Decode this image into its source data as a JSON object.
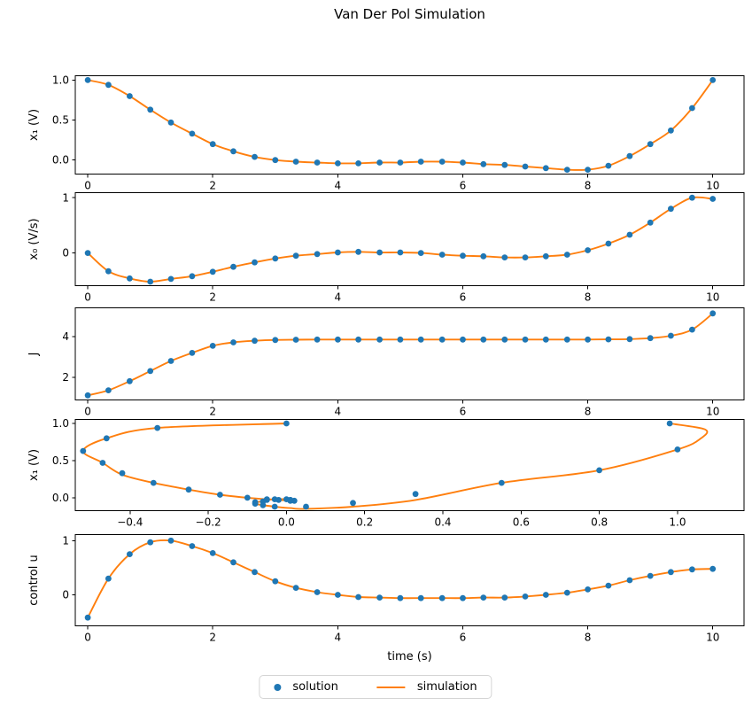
{
  "title": "Van Der Pol Simulation",
  "xlabel": "time (s)",
  "legend": {
    "solution_label": "solution",
    "simulation_label": "simulation"
  },
  "colors": {
    "solution": "#1f77b4",
    "simulation": "#ff7f0e",
    "axis": "#000000"
  },
  "time": [
    0,
    0.33,
    0.67,
    1,
    1.33,
    1.67,
    2,
    2.33,
    2.67,
    3,
    3.33,
    3.67,
    4,
    4.33,
    4.67,
    5,
    5.33,
    5.67,
    6,
    6.33,
    6.67,
    7,
    7.33,
    7.67,
    8,
    8.33,
    8.67,
    9,
    9.33,
    9.67,
    10
  ],
  "chart_data": [
    {
      "type": "scatter+line",
      "name": "x1-vs-time",
      "ylabel": "x₁ (V)",
      "y": [
        1,
        0.94,
        0.8,
        0.63,
        0.47,
        0.33,
        0.2,
        0.11,
        0.04,
        0,
        -0.02,
        -0.03,
        -0.04,
        -0.04,
        -0.03,
        -0.03,
        -0.02,
        -0.02,
        -0.03,
        -0.05,
        -0.06,
        -0.08,
        -0.1,
        -0.12,
        -0.12,
        -0.07,
        0.05,
        0.2,
        0.37,
        0.65,
        1
      ],
      "xlim": [
        -0.2,
        10.5
      ],
      "ylim": [
        -0.18,
        1.06
      ],
      "xticks": {
        "values": [
          0,
          2,
          4,
          6,
          8,
          10
        ],
        "labels": [
          "0",
          "2",
          "4",
          "6",
          "8",
          "10"
        ]
      },
      "yticks": {
        "values": [
          0,
          0.5,
          1
        ],
        "labels": [
          "0.0",
          "0.5",
          "1.0"
        ]
      }
    },
    {
      "type": "scatter+line",
      "name": "x0-vs-time",
      "ylabel": "x₀ (V/s)",
      "y": [
        0,
        -0.33,
        -0.46,
        -0.52,
        -0.47,
        -0.42,
        -0.34,
        -0.25,
        -0.17,
        -0.1,
        -0.05,
        -0.02,
        0.01,
        0.02,
        0.01,
        0.01,
        0,
        -0.03,
        -0.05,
        -0.06,
        -0.08,
        -0.08,
        -0.06,
        -0.03,
        0.05,
        0.17,
        0.33,
        0.55,
        0.8,
        1,
        0.98
      ],
      "xlim": [
        -0.2,
        10.5
      ],
      "ylim": [
        -0.6,
        1.1
      ],
      "xticks": {
        "values": [
          0,
          2,
          4,
          6,
          8,
          10
        ],
        "labels": [
          "0",
          "2",
          "4",
          "6",
          "8",
          "10"
        ]
      },
      "yticks": {
        "values": [
          0,
          1
        ],
        "labels": [
          "0",
          "1"
        ]
      }
    },
    {
      "type": "scatter+line",
      "name": "J-vs-time",
      "ylabel": "J",
      "y": [
        1.1,
        1.35,
        1.8,
        2.3,
        2.8,
        3.2,
        3.55,
        3.72,
        3.8,
        3.84,
        3.85,
        3.86,
        3.86,
        3.86,
        3.86,
        3.86,
        3.86,
        3.86,
        3.86,
        3.86,
        3.86,
        3.86,
        3.86,
        3.86,
        3.86,
        3.87,
        3.88,
        3.93,
        4.05,
        4.35,
        5.15
      ],
      "xlim": [
        -0.2,
        10.5
      ],
      "ylim": [
        0.85,
        5.45
      ],
      "xticks": {
        "values": [
          0,
          2,
          4,
          6,
          8,
          10
        ],
        "labels": [
          "0",
          "2",
          "4",
          "6",
          "8",
          "10"
        ]
      },
      "yticks": {
        "values": [
          2,
          4
        ],
        "labels": [
          "2",
          "4"
        ]
      }
    },
    {
      "type": "phase",
      "name": "x1-vs-x0-phase",
      "ylabel": "x₁ (V)",
      "x": [
        0,
        -0.33,
        -0.46,
        -0.52,
        -0.47,
        -0.42,
        -0.34,
        -0.25,
        -0.17,
        -0.1,
        -0.05,
        -0.02,
        0.01,
        0.02,
        0.01,
        0.01,
        0,
        -0.03,
        -0.05,
        -0.06,
        -0.08,
        -0.08,
        -0.06,
        -0.03,
        0.05,
        0.17,
        0.33,
        0.55,
        0.8,
        1,
        0.98
      ],
      "y": [
        1,
        0.94,
        0.8,
        0.63,
        0.47,
        0.33,
        0.2,
        0.11,
        0.04,
        0,
        -0.02,
        -0.03,
        -0.04,
        -0.04,
        -0.03,
        -0.03,
        -0.02,
        -0.02,
        -0.03,
        -0.05,
        -0.06,
        -0.08,
        -0.1,
        -0.12,
        -0.12,
        -0.07,
        0.05,
        0.2,
        0.37,
        0.65,
        1
      ],
      "sim": [
        [
          0,
          1
        ],
        [
          -0.33,
          0.94
        ],
        [
          -0.46,
          0.8
        ],
        [
          -0.52,
          0.63
        ],
        [
          -0.47,
          0.47
        ],
        [
          -0.42,
          0.31
        ],
        [
          -0.34,
          0.2
        ],
        [
          -0.25,
          0.11
        ],
        [
          -0.17,
          0.04
        ],
        [
          -0.1,
          0
        ],
        [
          -0.05,
          -0.02
        ],
        [
          -0.02,
          -0.03
        ],
        [
          0.01,
          -0.04
        ],
        [
          0.02,
          -0.04
        ],
        [
          0.01,
          -0.03
        ],
        [
          0.01,
          -0.03
        ],
        [
          0,
          -0.02
        ],
        [
          -0.03,
          -0.02
        ],
        [
          -0.05,
          -0.03
        ],
        [
          -0.06,
          -0.05
        ],
        [
          -0.08,
          -0.06
        ],
        [
          -0.08,
          -0.08
        ],
        [
          -0.06,
          -0.1
        ],
        [
          -0.03,
          -0.12
        ],
        [
          0.01,
          -0.14
        ],
        [
          0.05,
          -0.15
        ],
        [
          0.17,
          -0.12
        ],
        [
          0.33,
          -0.03
        ],
        [
          0.55,
          0.2
        ],
        [
          0.8,
          0.37
        ],
        [
          1,
          0.65
        ],
        [
          1.06,
          0.8
        ],
        [
          1.07,
          0.92
        ],
        [
          0.98,
          1
        ]
      ],
      "xlim": [
        -0.54,
        1.17
      ],
      "ylim": [
        -0.18,
        1.06
      ],
      "xticks": {
        "values": [
          -0.4,
          -0.2,
          0,
          0.2,
          0.4,
          0.6,
          0.8,
          1
        ],
        "labels": [
          "−0.4",
          "−0.2",
          "0.0",
          "0.2",
          "0.4",
          "0.6",
          "0.8",
          "1.0"
        ]
      },
      "yticks": {
        "values": [
          0,
          0.5,
          1
        ],
        "labels": [
          "0.0",
          "0.5",
          "1.0"
        ]
      }
    },
    {
      "type": "scatter+line",
      "name": "control-u-vs-time",
      "ylabel": "control u",
      "y": [
        -0.42,
        0.3,
        0.75,
        0.97,
        1,
        0.9,
        0.77,
        0.6,
        0.42,
        0.25,
        0.13,
        0.05,
        0,
        -0.04,
        -0.05,
        -0.06,
        -0.06,
        -0.06,
        -0.06,
        -0.05,
        -0.05,
        -0.03,
        0,
        0.04,
        0.1,
        0.17,
        0.27,
        0.35,
        0.42,
        0.47,
        0.48
      ],
      "xlim": [
        -0.2,
        10.5
      ],
      "ylim": [
        -0.58,
        1.12
      ],
      "xticks": {
        "values": [
          0,
          2,
          4,
          6,
          8,
          10
        ],
        "labels": [
          "0",
          "2",
          "4",
          "6",
          "8",
          "10"
        ]
      },
      "yticks": {
        "values": [
          0,
          1
        ],
        "labels": [
          "0",
          "1"
        ]
      }
    }
  ]
}
